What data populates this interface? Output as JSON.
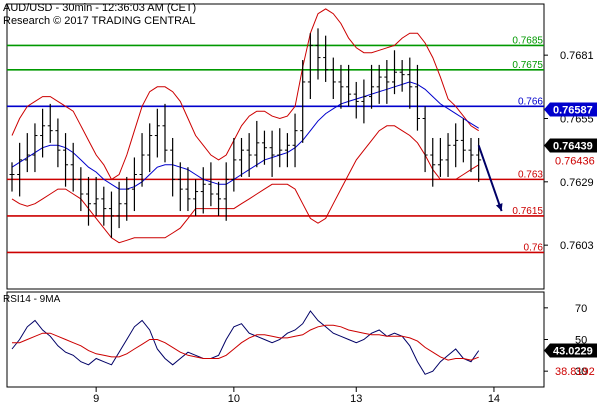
{
  "header": {
    "title": "AUD/USD - 30min - 12:36:03 AM (CET)",
    "research": "Research © 2017 TRADING CENTRAL"
  },
  "chart_data": [
    {
      "type": "line",
      "title": "AUD/USD - 30min",
      "ylim": [
        0.7585,
        0.7702
      ],
      "y_ticks": [
        {
          "label": "0.7681",
          "value": 0.7681
        },
        {
          "label": "0.7655",
          "value": 0.7655
        },
        {
          "label": "0.7629",
          "value": 0.7629
        },
        {
          "label": "0.7603",
          "value": 0.7603
        }
      ],
      "x_ticks": [
        {
          "label": "9",
          "index": 11
        },
        {
          "label": "10",
          "index": 29
        },
        {
          "label": "13",
          "index": 45
        },
        {
          "label": "14",
          "index": 63
        }
      ],
      "levels": [
        {
          "value": 0.7685,
          "label": "0.7685",
          "color": "#009900",
          "role": "resistance"
        },
        {
          "value": 0.7675,
          "label": "0.7675",
          "color": "#009900",
          "role": "resistance"
        },
        {
          "value": 0.766,
          "label": "0.766",
          "color": "#0000cc",
          "role": "pivot"
        },
        {
          "value": 0.763,
          "label": "0.763",
          "color": "#cc0000",
          "role": "support"
        },
        {
          "value": 0.7615,
          "label": "0.7615",
          "color": "#cc0000",
          "role": "support"
        },
        {
          "value": 0.76,
          "label": "0.76",
          "color": "#cc0000",
          "role": "support"
        }
      ],
      "price_labels": [
        {
          "label": "0.76587",
          "value": 0.76587,
          "style": "blue-box"
        },
        {
          "label": "0.76439",
          "value": 0.76439,
          "style": "black-box"
        },
        {
          "label": "0.76436",
          "value": 0.76436,
          "style": "red-text"
        }
      ],
      "series": [
        {
          "name": "price",
          "style": "hlc-bars",
          "color": "#000000",
          "values": [
            0.7632,
            0.7638,
            0.764,
            0.7648,
            0.7652,
            0.765,
            0.7642,
            0.7636,
            0.763,
            0.7624,
            0.762,
            0.7622,
            0.7618,
            0.7615,
            0.762,
            0.7626,
            0.7632,
            0.764,
            0.7648,
            0.7652,
            0.7642,
            0.763,
            0.7626,
            0.7622,
            0.7625,
            0.7628,
            0.7624,
            0.7622,
            0.763,
            0.7638,
            0.7642,
            0.764,
            0.7645,
            0.7643,
            0.764,
            0.7642,
            0.7644,
            0.765,
            0.767,
            0.7685,
            0.768,
            0.7675,
            0.767,
            0.7668,
            0.7665,
            0.7662,
            0.7664,
            0.7668,
            0.7672,
            0.767,
            0.7674,
            0.7673,
            0.7668,
            0.7655,
            0.764,
            0.7636,
            0.7638,
            0.7644,
            0.7646,
            0.7642,
            0.764,
            0.7638
          ]
        },
        {
          "name": "bollinger-upper",
          "color": "#cc0000",
          "values": [
            0.7648,
            0.7655,
            0.766,
            0.7662,
            0.7664,
            0.7664,
            0.7662,
            0.766,
            0.7658,
            0.7652,
            0.7646,
            0.764,
            0.7636,
            0.763,
            0.7632,
            0.764,
            0.765,
            0.766,
            0.7666,
            0.7668,
            0.7668,
            0.7666,
            0.7662,
            0.7655,
            0.7648,
            0.7644,
            0.764,
            0.7638,
            0.764,
            0.7646,
            0.7652,
            0.7656,
            0.7658,
            0.7658,
            0.7656,
            0.7655,
            0.7656,
            0.766,
            0.7676,
            0.769,
            0.7698,
            0.77,
            0.7698,
            0.7694,
            0.7688,
            0.7684,
            0.7682,
            0.7682,
            0.7683,
            0.7684,
            0.7685,
            0.7688,
            0.769,
            0.769,
            0.7686,
            0.768,
            0.7672,
            0.7663,
            0.766,
            0.7656,
            0.7652,
            0.765
          ]
        },
        {
          "name": "bollinger-middle",
          "color": "#0000cc",
          "values": [
            0.7635,
            0.7637,
            0.7639,
            0.7641,
            0.7643,
            0.7644,
            0.7644,
            0.7643,
            0.7641,
            0.7638,
            0.7635,
            0.7633,
            0.763,
            0.7628,
            0.7626,
            0.7626,
            0.7627,
            0.7629,
            0.7632,
            0.7635,
            0.7636,
            0.7636,
            0.7635,
            0.7634,
            0.7632,
            0.763,
            0.7629,
            0.7628,
            0.7628,
            0.763,
            0.7632,
            0.7634,
            0.7636,
            0.7638,
            0.7639,
            0.764,
            0.7641,
            0.7643,
            0.7646,
            0.765,
            0.7654,
            0.7657,
            0.7659,
            0.7661,
            0.7662,
            0.7663,
            0.7664,
            0.7665,
            0.7666,
            0.7667,
            0.7668,
            0.7669,
            0.767,
            0.7669,
            0.7667,
            0.7664,
            0.7661,
            0.7659,
            0.7657,
            0.7655,
            0.7653,
            0.7651
          ]
        },
        {
          "name": "bollinger-lower",
          "color": "#cc0000",
          "values": [
            0.7622,
            0.762,
            0.7619,
            0.762,
            0.7622,
            0.7624,
            0.7626,
            0.7626,
            0.7624,
            0.7622,
            0.7618,
            0.7614,
            0.761,
            0.7606,
            0.7604,
            0.7605,
            0.7606,
            0.7606,
            0.7606,
            0.7606,
            0.7606,
            0.7608,
            0.761,
            0.7614,
            0.7618,
            0.7618,
            0.7618,
            0.7618,
            0.7618,
            0.7618,
            0.762,
            0.7622,
            0.7624,
            0.7626,
            0.7628,
            0.7628,
            0.7628,
            0.7626,
            0.762,
            0.7614,
            0.7612,
            0.7614,
            0.762,
            0.7626,
            0.7632,
            0.7638,
            0.7642,
            0.7646,
            0.765,
            0.7652,
            0.7652,
            0.765,
            0.7648,
            0.7645,
            0.764,
            0.7634,
            0.763,
            0.763,
            0.763,
            0.7632,
            0.7634,
            0.7636
          ]
        }
      ],
      "annotations": [
        {
          "type": "arrow",
          "color": "#000066",
          "from": {
            "index": 61,
            "value": 0.7644
          },
          "to": {
            "index": 64,
            "value": 0.7617
          }
        }
      ]
    },
    {
      "type": "line",
      "title": "RSI14 - 9MA",
      "ylim": [
        20,
        80
      ],
      "y_ticks": [
        {
          "label": "70",
          "value": 70
        },
        {
          "label": "50",
          "value": 50
        },
        {
          "label": "30",
          "value": 30
        }
      ],
      "price_labels": [
        {
          "label": "43.0229",
          "value": 43.0229,
          "style": "black-box"
        },
        {
          "label": "38.8192",
          "value": 38.8192,
          "style": "red-text"
        }
      ],
      "series": [
        {
          "name": "RSI14",
          "color": "#000066",
          "values": [
            44,
            50,
            58,
            62,
            56,
            52,
            46,
            42,
            40,
            36,
            34,
            38,
            36,
            34,
            42,
            50,
            58,
            62,
            56,
            44,
            38,
            34,
            38,
            42,
            40,
            38,
            38,
            40,
            50,
            58,
            60,
            54,
            52,
            50,
            48,
            50,
            54,
            56,
            60,
            68,
            62,
            58,
            54,
            52,
            50,
            48,
            50,
            54,
            56,
            52,
            54,
            52,
            46,
            36,
            28,
            30,
            36,
            40,
            44,
            38,
            36,
            43
          ]
        },
        {
          "name": "9MA",
          "color": "#cc0000",
          "values": [
            48,
            48,
            50,
            52,
            54,
            54,
            52,
            50,
            48,
            46,
            43,
            41,
            40,
            39,
            39,
            41,
            44,
            47,
            50,
            50,
            48,
            45,
            42,
            40,
            39,
            38,
            38,
            38,
            40,
            44,
            48,
            51,
            53,
            53,
            52,
            51,
            51,
            52,
            53,
            56,
            58,
            59,
            59,
            58,
            56,
            55,
            54,
            53,
            53,
            52,
            52,
            52,
            51,
            49,
            45,
            42,
            39,
            37,
            38,
            38,
            37,
            38.8
          ]
        }
      ]
    }
  ]
}
